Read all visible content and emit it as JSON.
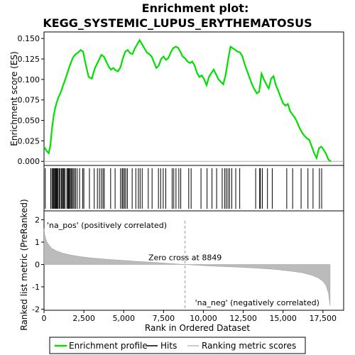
{
  "chart_data": {
    "type": "line",
    "title_line1": "Enrichment plot:",
    "title_line2": "KEGG_SYSTEMIC_LUPUS_ERYTHEMATOSUS",
    "es_panel": {
      "ylabel": "Enrichment score (ES)",
      "ylim": [
        -0.005,
        0.158
      ],
      "yticks": [
        0.0,
        0.025,
        0.05,
        0.075,
        0.1,
        0.125,
        0.15
      ],
      "ytick_labels": [
        "0.000",
        "0.025",
        "0.050",
        "0.075",
        "0.100",
        "0.125",
        "0.150"
      ],
      "line_color": "#00e000",
      "series": [
        {
          "x": [
            0,
            150,
            300,
            400,
            500,
            600,
            700,
            800,
            900,
            1000,
            1100,
            1200,
            1300,
            1400,
            1500,
            1600,
            1700,
            1800,
            1900,
            2000,
            2150,
            2300,
            2450,
            2600,
            2800,
            3000,
            3100,
            3200,
            3300,
            3450,
            3600,
            3750,
            3900,
            4050,
            4200,
            4350,
            4500,
            4650,
            4800,
            4950,
            5100,
            5250,
            5400,
            5550,
            5700,
            5850,
            6000,
            6150,
            6300,
            6450,
            6600,
            6750,
            6900,
            7050,
            7200,
            7350,
            7500,
            7650,
            7800,
            7950,
            8100,
            8250,
            8400,
            8550,
            8700,
            8849,
            9000,
            9150,
            9300,
            9450,
            9600,
            9750,
            9900,
            10050,
            10200,
            10350,
            10500,
            10650,
            10800,
            10950,
            11100,
            11250,
            11400,
            11550,
            11700,
            11850,
            12000,
            12150,
            12300,
            12450,
            12600,
            12750,
            12900,
            13050,
            13200,
            13350,
            13500,
            13650,
            13800,
            13950,
            14100,
            14250,
            14400,
            14550,
            14700,
            14850,
            15000,
            15150,
            15300,
            15450,
            15600,
            15750,
            15900,
            16050,
            16200,
            16350,
            16500,
            16650,
            16800,
            16950,
            17100,
            17250,
            17400,
            17550,
            17700,
            17850,
            18000
          ],
          "y": [
            0.018,
            0.013,
            0.01,
            0.02,
            0.04,
            0.055,
            0.065,
            0.072,
            0.078,
            0.082,
            0.087,
            0.093,
            0.098,
            0.104,
            0.11,
            0.116,
            0.121,
            0.126,
            0.129,
            0.131,
            0.133,
            0.136,
            0.134,
            0.12,
            0.103,
            0.101,
            0.108,
            0.114,
            0.118,
            0.124,
            0.13,
            0.128,
            0.122,
            0.116,
            0.112,
            0.114,
            0.111,
            0.11,
            0.115,
            0.126,
            0.134,
            0.136,
            0.132,
            0.131,
            0.138,
            0.143,
            0.148,
            0.143,
            0.138,
            0.133,
            0.131,
            0.128,
            0.121,
            0.114,
            0.117,
            0.125,
            0.128,
            0.124,
            0.126,
            0.133,
            0.138,
            0.14,
            0.139,
            0.134,
            0.128,
            0.126,
            0.122,
            0.12,
            0.122,
            0.117,
            0.108,
            0.103,
            0.105,
            0.1,
            0.093,
            0.103,
            0.108,
            0.112,
            0.106,
            0.1,
            0.097,
            0.094,
            0.106,
            0.124,
            0.14,
            0.138,
            0.136,
            0.134,
            0.133,
            0.128,
            0.118,
            0.11,
            0.102,
            0.094,
            0.088,
            0.083,
            0.085,
            0.107,
            0.1,
            0.094,
            0.089,
            0.101,
            0.104,
            0.093,
            0.086,
            0.078,
            0.071,
            0.068,
            0.07,
            0.061,
            0.057,
            0.053,
            0.047,
            0.04,
            0.035,
            0.031,
            0.028,
            0.026,
            0.018,
            0.01,
            0.004,
            0.016,
            0.018,
            0.014,
            0.009,
            0.002,
            0.0
          ]
        }
      ]
    },
    "hits_panel": {
      "label": "Hits",
      "hit_positions": [
        80,
        420,
        500,
        560,
        610,
        660,
        710,
        750,
        790,
        830,
        880,
        950,
        1010,
        1090,
        1150,
        1200,
        1250,
        1310,
        1430,
        1490,
        1540,
        1590,
        1640,
        1700,
        1760,
        1830,
        1900,
        1980,
        2080,
        2230,
        2430,
        2500,
        2850,
        3150,
        3350,
        3480,
        3600,
        3700,
        3780,
        4180,
        4460,
        4800,
        4900,
        4960,
        5050,
        5130,
        5230,
        5530,
        5760,
        5920,
        6030,
        6160,
        6540,
        6780,
        7180,
        7320,
        7480,
        7640,
        8040,
        8140,
        8280,
        8460,
        8580,
        9080,
        9230,
        9850,
        10230,
        10540,
        10830,
        11180,
        11330,
        11430,
        11540,
        11640,
        11780,
        12030,
        12280,
        13280,
        13530,
        13580,
        13700,
        14020,
        14320,
        15230,
        15600,
        16130,
        16560,
        16880,
        17280,
        17420
      ]
    },
    "metric_panel": {
      "ylabel": "Ranked list metric (PreRanked)",
      "xlabel": "Rank in Ordered Dataset",
      "ylim": [
        -2.05,
        2.4
      ],
      "yticks": [
        -2,
        -1,
        0,
        1,
        2
      ],
      "ytick_labels": [
        "-2",
        "-1",
        "0",
        "1",
        "2"
      ],
      "xlim": [
        0,
        18800
      ],
      "xticks": [
        0,
        2500,
        5000,
        7500,
        10000,
        12500,
        15000,
        17500
      ],
      "xtick_labels": [
        "0",
        "2,500",
        "5,000",
        "7,500",
        "10,000",
        "12,500",
        "15,000",
        "17,500"
      ],
      "metric_x": [
        0,
        50,
        150,
        300,
        500,
        800,
        1200,
        1700,
        2300,
        3000,
        4000,
        5000,
        6000,
        7000,
        8000,
        8849,
        9500,
        10500,
        11500,
        12500,
        13500,
        14500,
        15500,
        16200,
        16800,
        17200,
        17500,
        17700,
        17850,
        17950
      ],
      "metric_y": [
        1.6,
        1.3,
        1.05,
        0.88,
        0.72,
        0.6,
        0.5,
        0.42,
        0.35,
        0.29,
        0.23,
        0.18,
        0.13,
        0.09,
        0.04,
        0.0,
        -0.03,
        -0.07,
        -0.1,
        -0.13,
        -0.17,
        -0.22,
        -0.3,
        -0.37,
        -0.48,
        -0.6,
        -0.75,
        -0.95,
        -1.3,
        -1.85
      ],
      "zero_cross_x": 8849,
      "zero_cross_label": "Zero cross at 8849",
      "pos_label": "'na_pos' (positively correlated)",
      "neg_label": "'na_neg' (negatively correlated)",
      "pos_color": "#dd0000",
      "neg_color": "#0000dd"
    },
    "legend": {
      "items": [
        {
          "label": "Enrichment profile",
          "color": "#00e000",
          "style": "line"
        },
        {
          "label": "Hits",
          "color": "#000000",
          "style": "line"
        },
        {
          "label": "Ranking metric scores",
          "color": "#bbbbbb",
          "style": "line"
        }
      ]
    },
    "n_genes": 18000
  }
}
